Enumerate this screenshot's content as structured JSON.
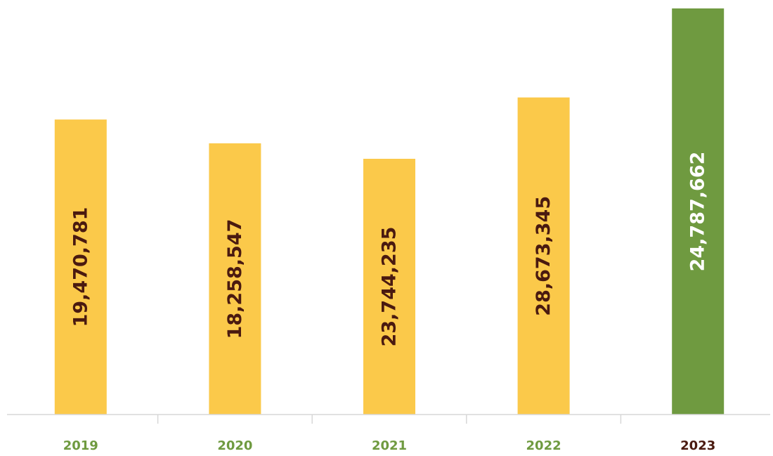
{
  "chart_data": {
    "type": "bar",
    "title": "",
    "xlabel": "",
    "ylabel": "",
    "categories": [
      "2019",
      "2020",
      "2021",
      "2022",
      "2023"
    ],
    "values": [
      19470781,
      18258547,
      23744235,
      28673345,
      24787662
    ],
    "value_labels": [
      "19,470,781",
      "18,258,547",
      "23,744,235",
      "28,673,345",
      "24,787,662"
    ],
    "bar_fill_fractions": [
      0.7265,
      0.6678,
      0.6298,
      0.7808,
      1.0
    ],
    "highlight_index": 4,
    "grid": false,
    "legend": "none"
  },
  "colors": {
    "bar_default": "#fbc94a",
    "bar_highlight": "#6f9a40",
    "label_default": "#4a1a10",
    "label_highlight": "#ffffff",
    "tick_default": "#6f9a40",
    "tick_highlight": "#4a1a10",
    "axis": "#d7d7d7"
  }
}
